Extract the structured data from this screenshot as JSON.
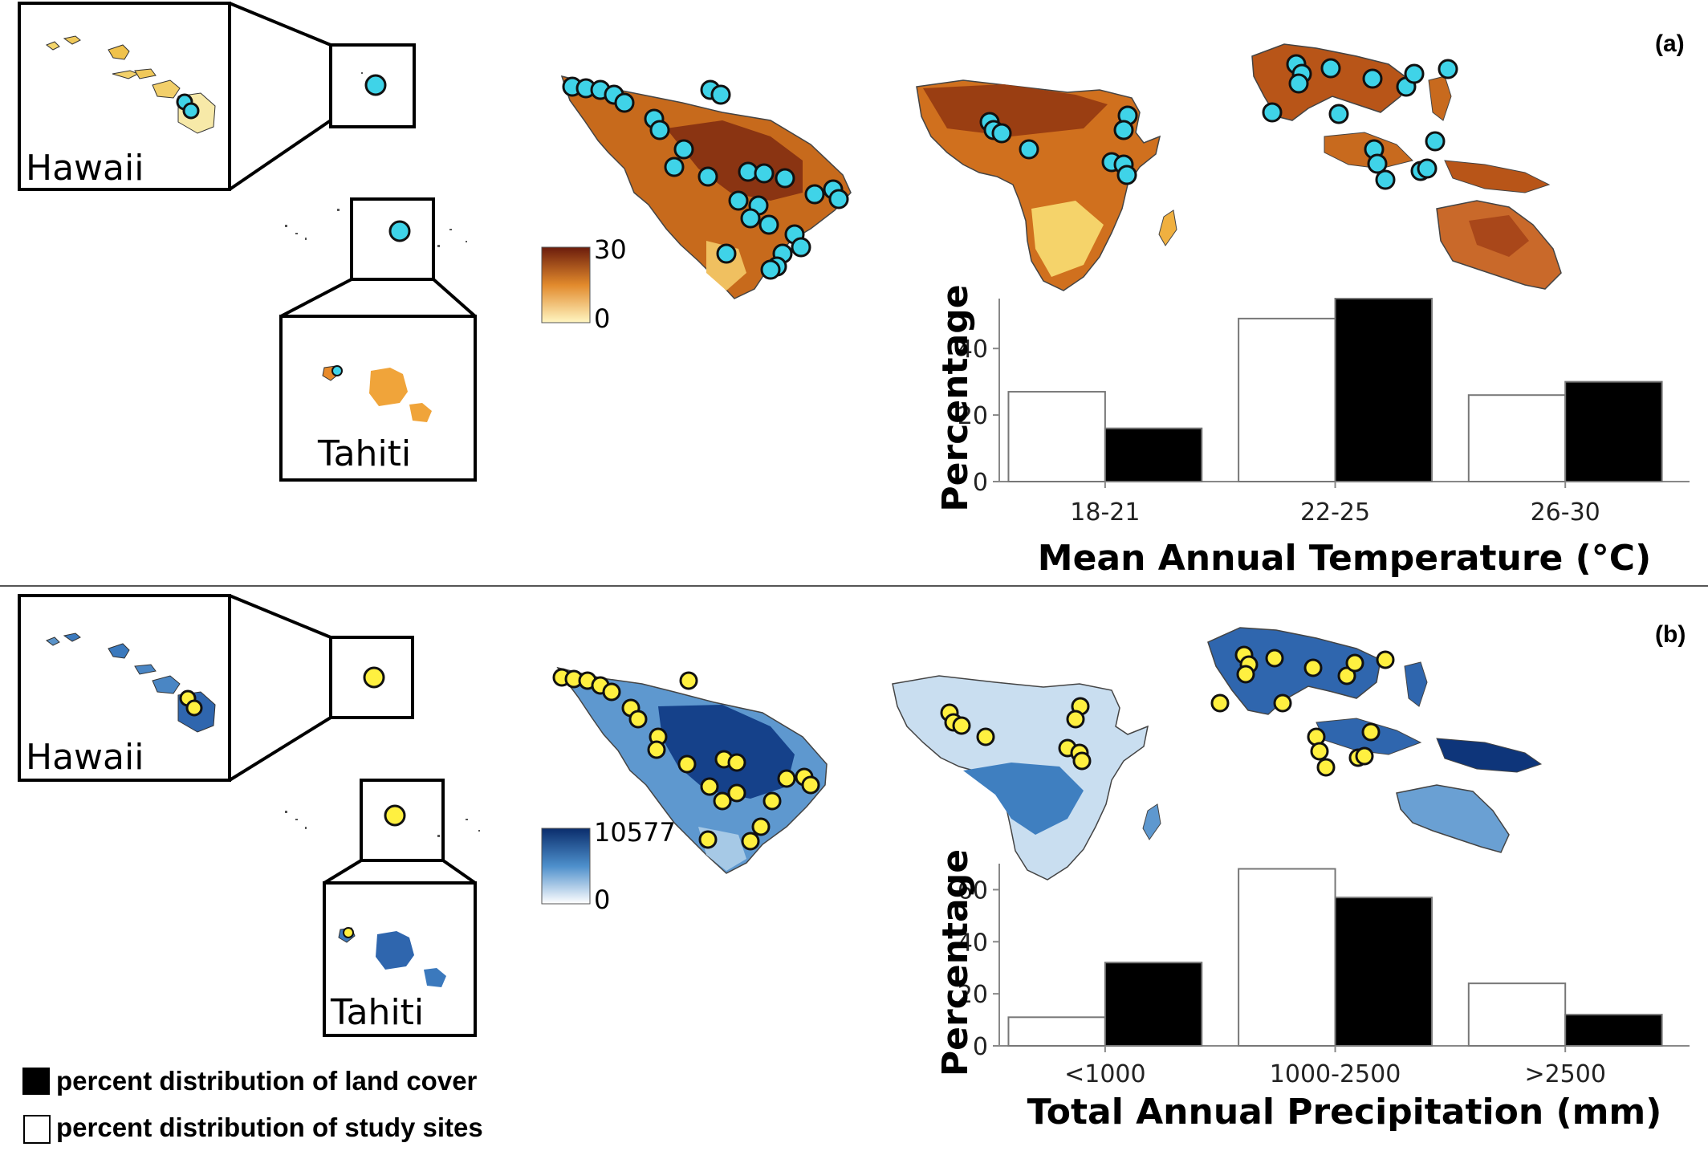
{
  "legend": {
    "land_cover": "percent distribution of land cover",
    "study_sites": "percent distribution of study sites"
  },
  "colors": {
    "temp_low": "#fff2b0",
    "temp_mid": "#e28a2c",
    "temp_high": "#6b1c0c",
    "precip_low": "#ffffff",
    "precip_mid": "#5b9bd0",
    "precip_high": "#0a2d6c",
    "site_dot_a": "#3fd3e8",
    "site_dot_b": "#fff040",
    "bar_land": "#000000",
    "bar_sites": "#ffffff"
  },
  "panels": [
    {
      "letter": "(a)",
      "hawaii_label": "Hawaii",
      "tahiti_label": "Tahiti",
      "scale_max": "30",
      "scale_min": "0"
    },
    {
      "letter": "(b)",
      "hawaii_label": "Hawaii",
      "tahiti_label": "Tahiti",
      "scale_max": "10577",
      "scale_min": "0"
    }
  ],
  "chart_data": [
    {
      "type": "bar",
      "xlabel": "Mean Annual Temperature (°C)",
      "ylabel": "Percentage",
      "categories": [
        "18-21",
        "22-25",
        "26-30"
      ],
      "y_ticks": [
        "0",
        "20",
        "40"
      ],
      "ylim": [
        0,
        55
      ],
      "series": [
        {
          "name": "percent distribution of study sites",
          "values": [
            27,
            49,
            26
          ]
        },
        {
          "name": "percent distribution of land cover",
          "values": [
            16,
            55,
            30
          ]
        }
      ]
    },
    {
      "type": "bar",
      "xlabel": "Total Annual Precipitation (mm)",
      "ylabel": "Percentage",
      "categories": [
        "<1000",
        "1000-2500",
        ">2500"
      ],
      "y_ticks": [
        "0",
        "20",
        "40",
        "60"
      ],
      "ylim": [
        0,
        70
      ],
      "series": [
        {
          "name": "percent distribution of study sites",
          "values": [
            11,
            68,
            24
          ]
        },
        {
          "name": "percent distribution of land cover",
          "values": [
            32,
            57,
            12
          ]
        }
      ]
    }
  ]
}
